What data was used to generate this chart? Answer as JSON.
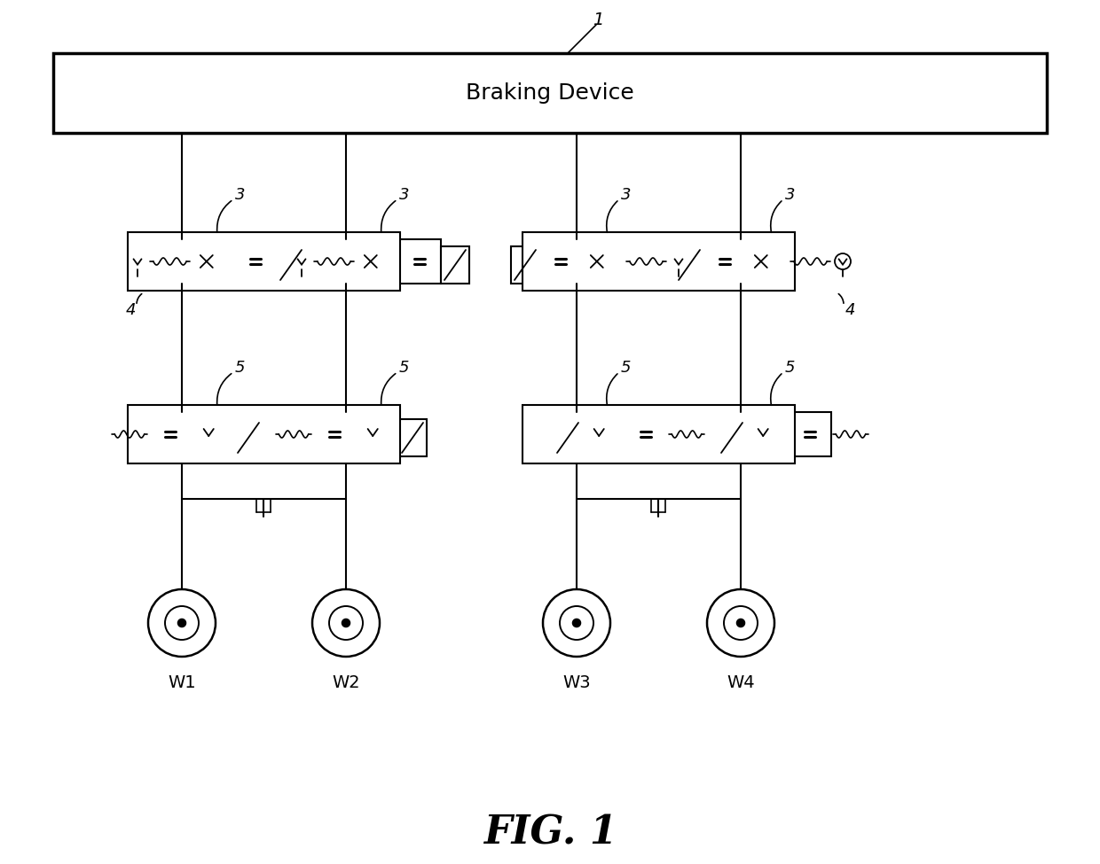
{
  "title": "FIG. 1",
  "braking_device_label": "Braking Device",
  "label_1": "1",
  "label_3": "3",
  "label_4": "4",
  "label_5": "5",
  "wheel_labels": [
    "W1",
    "W2",
    "W3",
    "W4"
  ],
  "bg_color": "#ffffff",
  "line_color": "#000000",
  "fig_width": 12.4,
  "fig_height": 9.75
}
